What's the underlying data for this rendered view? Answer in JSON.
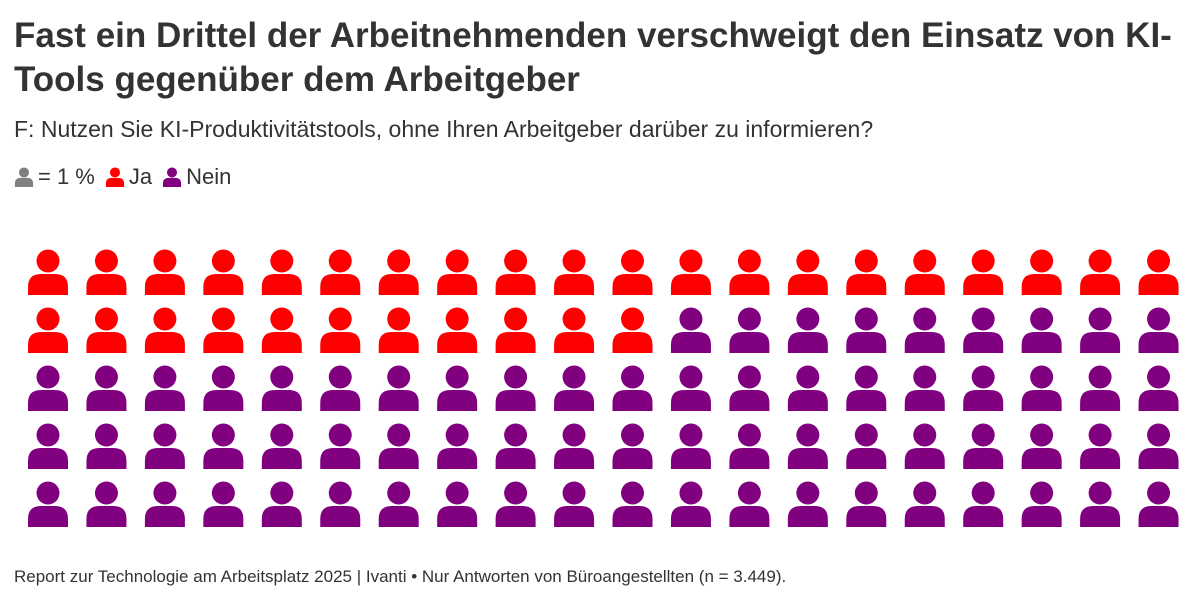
{
  "title": "Fast ein Drittel der Arbeitnehmenden verschweigt den Einsatz von KI-Tools gegenüber dem Arbeitgeber",
  "subtitle": "F: Nutzen Sie KI-Produktivitätstools, ohne Ihren Arbeitgeber darüber zu informieren?",
  "legend": {
    "unit_label": "= 1 %",
    "unit_color": "#808080",
    "items": [
      {
        "label": "Ja",
        "color": "#ff0000"
      },
      {
        "label": "Nein",
        "color": "#800080"
      }
    ]
  },
  "chart_data": {
    "type": "waffle",
    "unit": "1 %",
    "total": 100,
    "categories": [
      "Ja",
      "Nein"
    ],
    "values": [
      31,
      69
    ],
    "colors": [
      "#ff0000",
      "#800080"
    ]
  },
  "footer": "Report zur Technologie am Arbeitsplatz 2025 | Ivanti • Nur Antworten von Büroangestellten (n = 3.449)."
}
